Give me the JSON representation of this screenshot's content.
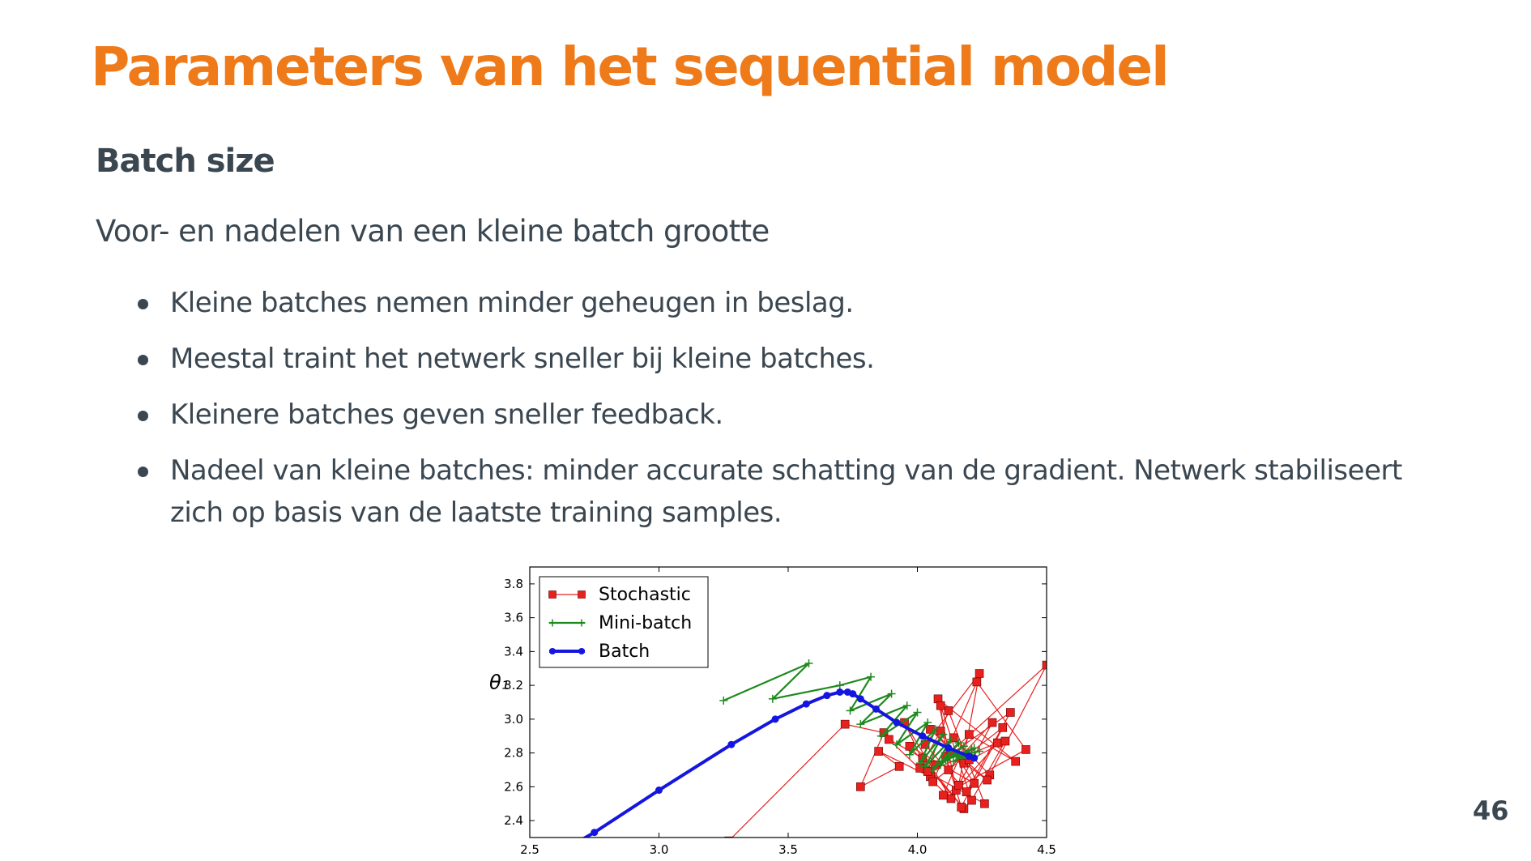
{
  "slide": {
    "title": "Parameters van het sequential model",
    "subtitle": "Batch size",
    "intro": "Voor- en nadelen van een kleine batch grootte",
    "bullets": [
      "Kleine batches nemen minder geheugen in beslag.",
      "Meestal traint het netwerk sneller bij kleine batches.",
      "Kleinere batches geven sneller feedback.",
      "Nadeel van kleine batches: minder accurate schatting van de gradient. Netwerk stabiliseert zich op basis van de laatste training samples."
    ],
    "page_number": "46"
  },
  "chart_data": {
    "type": "line",
    "xlim": [
      2.5,
      4.5
    ],
    "ylim": [
      2.3,
      3.9
    ],
    "x_ticks": [
      "2.5",
      "3.0",
      "3.5",
      "4.0",
      "4.5"
    ],
    "y_ticks": [
      "2.4",
      "2.6",
      "2.8",
      "3.0",
      "3.2",
      "3.4",
      "3.6",
      "3.8"
    ],
    "ylabel": "θ₁",
    "xlabel": "",
    "legend_position": "top-left",
    "grid": false,
    "series": [
      {
        "name": "Stochastic",
        "color": "#e8201e",
        "marker": "square",
        "x": [
          3.27,
          3.72,
          3.87,
          3.78,
          3.93,
          3.85,
          4.05,
          3.95,
          4.13,
          3.89,
          4.02,
          4.18,
          3.97,
          4.22,
          4.09,
          4.01,
          4.26,
          4.12,
          4.04,
          4.31,
          4.15,
          4.08,
          4.38,
          4.2,
          4.1,
          4.42,
          4.23,
          4.06,
          4.33,
          4.17,
          4.11,
          4.5,
          4.28,
          4.14,
          4.07,
          4.36,
          4.19,
          4.03,
          4.24,
          4.16,
          4.29,
          4.12,
          4.09,
          4.21,
          4.34,
          4.18,
          4.05,
          4.27,
          4.13,
          4.2
        ],
        "y": [
          2.28,
          2.97,
          2.92,
          2.6,
          2.72,
          2.81,
          2.66,
          2.98,
          2.53,
          2.88,
          2.77,
          2.47,
          2.84,
          2.62,
          2.93,
          2.71,
          2.5,
          3.05,
          2.69,
          2.86,
          2.58,
          3.12,
          2.75,
          2.91,
          2.55,
          2.82,
          3.22,
          2.63,
          2.95,
          2.48,
          2.78,
          3.32,
          2.67,
          2.89,
          2.73,
          3.04,
          2.57,
          2.85,
          3.27,
          2.61,
          2.98,
          2.7,
          3.08,
          2.52,
          2.87,
          2.74,
          2.94,
          2.64,
          2.8,
          2.76
        ]
      },
      {
        "name": "Mini-batch",
        "color": "#1e8a1e",
        "marker": "plus",
        "x": [
          3.25,
          3.58,
          3.44,
          3.7,
          3.82,
          3.74,
          3.9,
          3.78,
          3.96,
          3.86,
          4.0,
          3.92,
          4.04,
          3.97,
          4.07,
          4.01,
          4.1,
          4.03,
          4.13,
          4.06,
          4.16,
          4.09,
          4.18,
          4.11,
          4.21,
          4.14,
          4.22,
          4.12,
          4.24,
          4.15,
          4.2,
          4.17,
          4.22
        ],
        "y": [
          3.11,
          3.33,
          3.12,
          3.2,
          3.25,
          3.05,
          3.15,
          2.97,
          3.08,
          2.9,
          3.04,
          2.85,
          2.98,
          2.79,
          2.94,
          2.74,
          2.91,
          2.72,
          2.88,
          2.7,
          2.86,
          2.73,
          2.84,
          2.76,
          2.82,
          2.75,
          2.83,
          2.77,
          2.81,
          2.78,
          2.79,
          2.77,
          2.78
        ]
      },
      {
        "name": "Batch",
        "color": "#1515e0",
        "marker": "circle",
        "x": [
          2.6,
          2.75,
          3.0,
          3.28,
          3.45,
          3.57,
          3.65,
          3.7,
          3.73,
          3.75,
          3.78,
          3.84,
          3.92,
          4.02,
          4.12,
          4.2,
          4.22
        ],
        "y": [
          2.2,
          2.33,
          2.58,
          2.85,
          3.0,
          3.09,
          3.14,
          3.16,
          3.16,
          3.15,
          3.12,
          3.06,
          2.98,
          2.9,
          2.83,
          2.78,
          2.77
        ]
      }
    ]
  }
}
